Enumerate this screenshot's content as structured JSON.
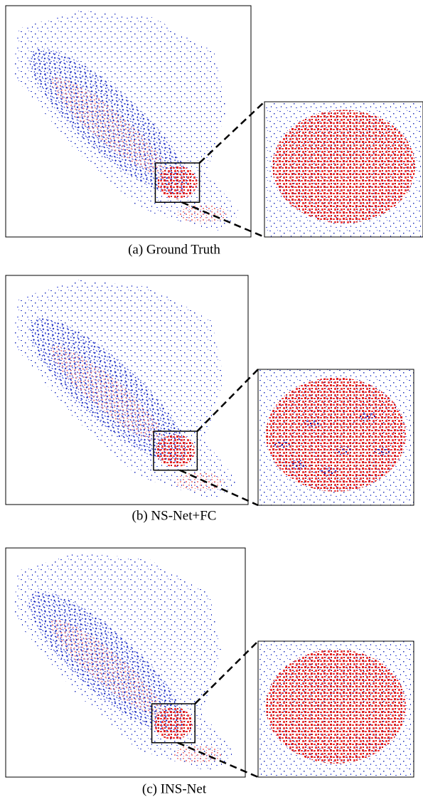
{
  "panels": [
    {
      "caption": "(a) Ground Truth"
    },
    {
      "caption": "(b) NS-Net+FC"
    },
    {
      "caption": "(c) INS-Net"
    }
  ]
}
